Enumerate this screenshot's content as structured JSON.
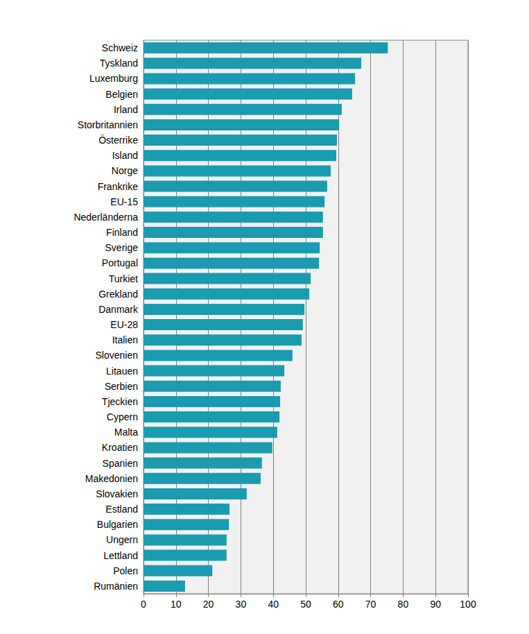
{
  "chart_data": {
    "type": "bar",
    "orientation": "horizontal",
    "categories": [
      "Schweiz",
      "Tyskland",
      "Luxemburg",
      "Belgien",
      "Irland",
      "Storbritannien",
      "Österrike",
      "Island",
      "Norge",
      "Frankrike",
      "EU-15",
      "Nederländerna",
      "Finland",
      "Sverige",
      "Portugal",
      "Turkiet",
      "Grekland",
      "Danmark",
      "EU-28",
      "Italien",
      "Slovenien",
      "Litauen",
      "Serbien",
      "Tjeckien",
      "Cypern",
      "Malta",
      "Kroatien",
      "Spanien",
      "Makedonien",
      "Slovakien",
      "Estland",
      "Bulgarien",
      "Ungern",
      "Lettland",
      "Polen",
      "Rumänien"
    ],
    "values": [
      75.3,
      67.1,
      65.2,
      64.3,
      61.1,
      60.3,
      59.6,
      59.4,
      57.7,
      56.6,
      55.8,
      55.3,
      55.3,
      54.3,
      54.1,
      51.5,
      51.1,
      49.6,
      49.1,
      48.7,
      45.9,
      43.4,
      42.3,
      42.1,
      41.9,
      41.2,
      39.7,
      36.5,
      36.1,
      31.8,
      26.5,
      26.3,
      25.6,
      25.6,
      21.2,
      12.8
    ],
    "color": "#1a9bb0",
    "xlim": [
      0,
      100
    ],
    "xticks": [
      0,
      10,
      20,
      30,
      40,
      50,
      60,
      70,
      80,
      90,
      100
    ],
    "grid": true
  }
}
